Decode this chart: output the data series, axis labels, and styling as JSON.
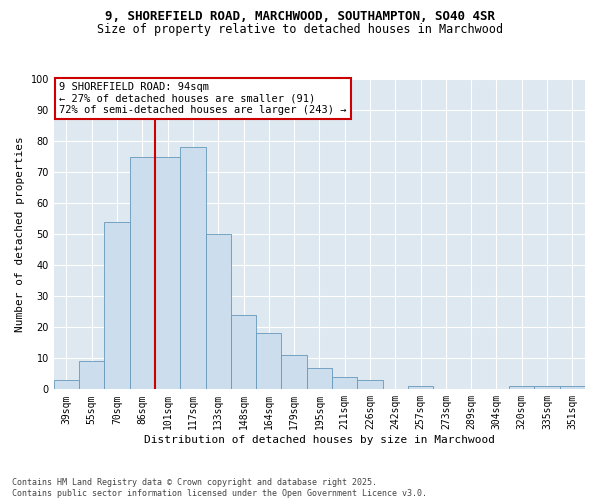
{
  "title_line1": "9, SHOREFIELD ROAD, MARCHWOOD, SOUTHAMPTON, SO40 4SR",
  "title_line2": "Size of property relative to detached houses in Marchwood",
  "xlabel": "Distribution of detached houses by size in Marchwood",
  "ylabel": "Number of detached properties",
  "categories": [
    "39sqm",
    "55sqm",
    "70sqm",
    "86sqm",
    "101sqm",
    "117sqm",
    "133sqm",
    "148sqm",
    "164sqm",
    "179sqm",
    "195sqm",
    "211sqm",
    "226sqm",
    "242sqm",
    "257sqm",
    "273sqm",
    "289sqm",
    "304sqm",
    "320sqm",
    "335sqm",
    "351sqm"
  ],
  "values": [
    3,
    9,
    54,
    75,
    75,
    78,
    50,
    24,
    18,
    11,
    7,
    4,
    3,
    0,
    1,
    0,
    0,
    0,
    1,
    1,
    1
  ],
  "bar_color": "#ccdded",
  "bar_edge_color": "#6699bb",
  "vline_index": 3,
  "vline_color": "#cc0000",
  "annotation_text": "9 SHOREFIELD ROAD: 94sqm\n← 27% of detached houses are smaller (91)\n72% of semi-detached houses are larger (243) →",
  "annotation_box_color": "#ffffff",
  "annotation_box_edge": "#cc0000",
  "ylim": [
    0,
    100
  ],
  "background_color": "#dde8f0",
  "footer_text": "Contains HM Land Registry data © Crown copyright and database right 2025.\nContains public sector information licensed under the Open Government Licence v3.0.",
  "title_fontsize": 9,
  "subtitle_fontsize": 8.5,
  "axis_label_fontsize": 8,
  "tick_fontsize": 7,
  "annotation_fontsize": 7.5,
  "footer_fontsize": 6
}
